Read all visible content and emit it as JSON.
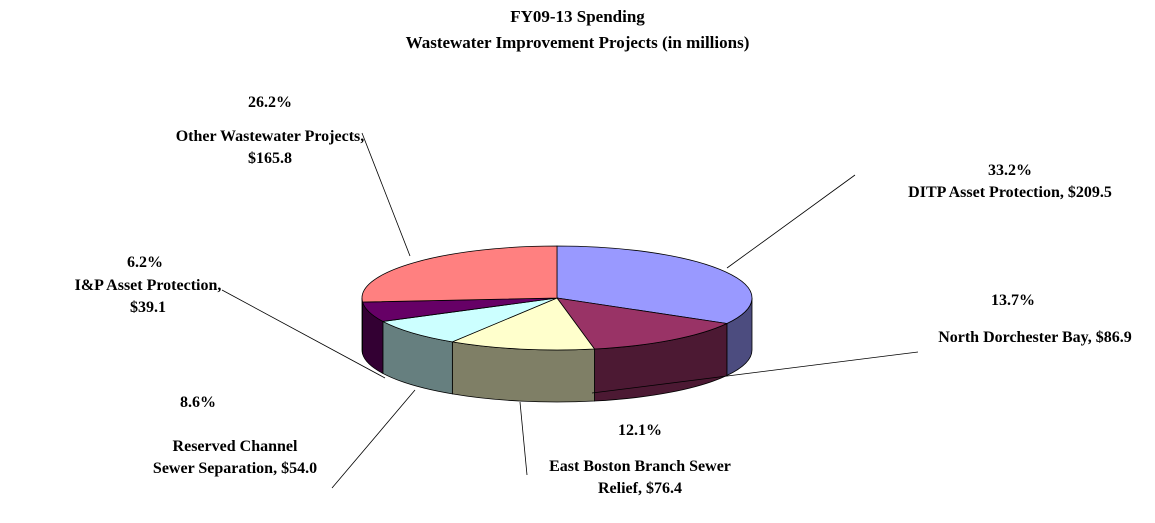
{
  "chart_data": {
    "type": "pie3d",
    "title": "FY09-13 Spending",
    "subtitle": "Wastewater Improvement Projects (in millions)",
    "categories": [
      "DITP Asset Protection,",
      "North Dorchester Bay,",
      "East Boston Branch Sewer Relief,",
      "Reserved Channel Sewer Separation,",
      "I&P Asset Protection,",
      "Other Wastewater Projects,"
    ],
    "values": [
      209.5,
      86.9,
      76.4,
      54.0,
      39.1,
      165.8
    ],
    "value_labels": [
      "$209.5",
      "$86.9",
      "$76.4",
      "$54.0",
      "$39.1",
      "$165.8"
    ],
    "percents": [
      33.2,
      13.7,
      12.1,
      8.6,
      6.2,
      26.2
    ],
    "percent_labels": [
      "33.2%",
      "13.7%",
      "12.1%",
      "8.6%",
      "6.2%",
      "26.2%"
    ],
    "colors": [
      "#9999FF",
      "#993366",
      "#FFFFCC",
      "#CCFFFF",
      "#660066",
      "#FF8080"
    ]
  }
}
